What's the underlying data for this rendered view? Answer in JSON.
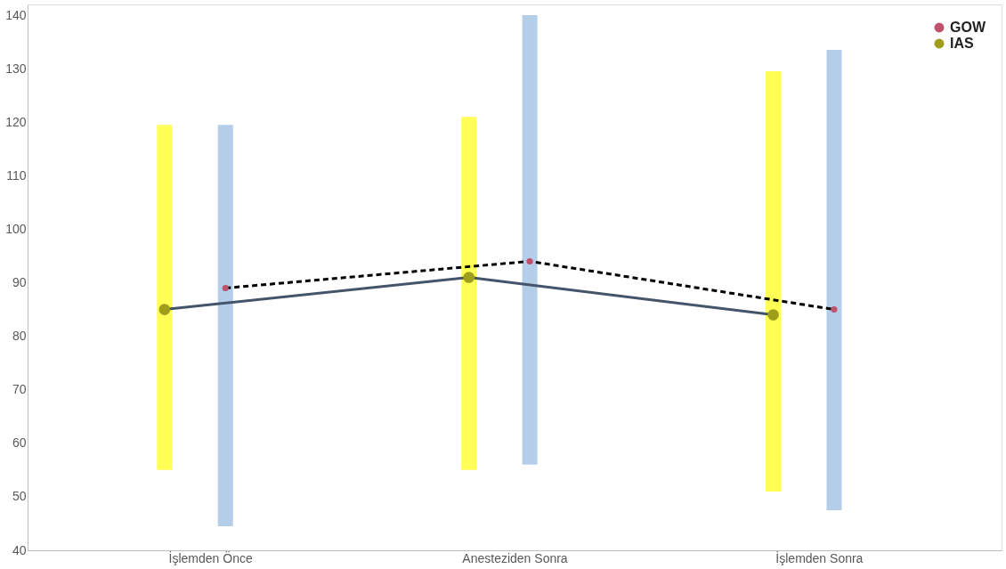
{
  "chart_data": {
    "type": "line",
    "categories": [
      "İşlemden Önce",
      "Anesteziden Sonra",
      "İşlemden Sonra"
    ],
    "series": [
      {
        "name": "GOW",
        "color": "#c0506e",
        "line_style": "dashed",
        "marker": "circle",
        "values": [
          89,
          94,
          85
        ],
        "errors": [
          [
            44.5,
            119.5
          ],
          [
            56,
            140
          ],
          [
            47.5,
            133.5
          ]
        ]
      },
      {
        "name": "IAS",
        "color": "#9e9e1a",
        "line_style": "solid",
        "marker": "circle",
        "values": [
          85,
          91,
          84
        ],
        "errors": [
          [
            55,
            119.5
          ],
          [
            55,
            121
          ],
          [
            51,
            129.5
          ]
        ]
      }
    ],
    "ylim": [
      40,
      142
    ],
    "yticks": [
      40,
      50,
      60,
      70,
      80,
      90,
      100,
      110,
      120,
      130,
      140
    ],
    "grid": false,
    "legend": "top right"
  }
}
